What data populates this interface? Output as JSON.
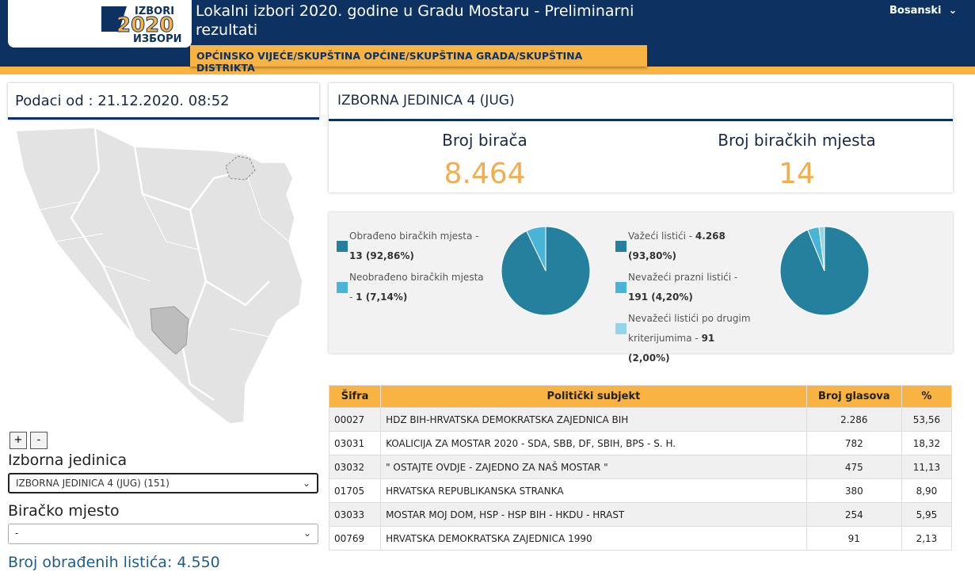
{
  "header": {
    "logo_top": "IZBORI",
    "logo_year": "2020",
    "logo_bottom": "ИЗБОРИ",
    "title": "Lokalni izbori 2020. godine u Gradu Mostaru - Preliminarni rezultati",
    "language": "Bosanski",
    "tab": "OPĆINSKO VIJEĆE/SKUPŠTINA OPĆINE/SKUPŠTINA GRADA/SKUPŠTINA DISTRIKTA"
  },
  "left": {
    "data_date": "Podaci od : 21.12.2020. 08:52",
    "zoom_in": "+",
    "zoom_out": "-",
    "unit_label": "Izborna jedinica",
    "unit_select": "IZBORNA JEDINICA 4 (JUG) (151)",
    "station_label": "Biračko mjesto",
    "station_select": "-",
    "processed": "Broj obrađenih listića: 4.550"
  },
  "summary": {
    "unit": "IZBORNA JEDINICA 4 (JUG)",
    "voters_label": "Broj birača",
    "voters": "8.464",
    "stations_label": "Broj biračkih mjesta",
    "stations": "14"
  },
  "chart_data": [
    {
      "type": "pie",
      "categories": [
        "Obrađeno biračkih mjesta -",
        "Neobrađeno biračkih mjesta -"
      ],
      "values": [
        92.86,
        7.14
      ],
      "value_labels": [
        "13 (92,86%)",
        "1 (7,14%)"
      ],
      "colors": [
        "#24809d",
        "#48b4d6"
      ]
    },
    {
      "type": "pie",
      "categories": [
        "Važeći listići -",
        "Nevažeći prazni listići -",
        "Nevažeći listići po drugim kriterijumima -"
      ],
      "values": [
        93.8,
        4.2,
        2.0
      ],
      "value_labels": [
        "4.268 (93,80%)",
        "191 (4,20%)",
        "91 (2,00%)"
      ],
      "colors": [
        "#24809d",
        "#48b4d6",
        "#94d4e8"
      ]
    }
  ],
  "table": {
    "header": [
      "Šifra",
      "Politički subjekt",
      "Broj glasova",
      "%"
    ],
    "rows": [
      [
        "00027",
        "HDZ BIH-HRVATSKA DEMOKRATSKA ZAJEDNICA BIH",
        "2.286",
        "53,56"
      ],
      [
        "03031",
        "KOALICIJA ZA MOSTAR 2020 - SDA, SBB, DF, SBIH, BPS - S. H.",
        "782",
        "18,32"
      ],
      [
        "03032",
        "\" OSTAJTE OVDJE - ZAJEDNO ZA NAŠ MOSTAR \"",
        "475",
        "11,13"
      ],
      [
        "01705",
        "HRVATSKA REPUBLIKANSKA STRANKA",
        "380",
        "8,90"
      ],
      [
        "03033",
        "MOSTAR MOJ DOM, HSP - HSP BIH - HKDU - HRAST",
        "254",
        "5,95"
      ],
      [
        "00769",
        "HRVATSKA DEMOKRATSKA ZAJEDNICA 1990",
        "91",
        "2,13"
      ]
    ]
  }
}
